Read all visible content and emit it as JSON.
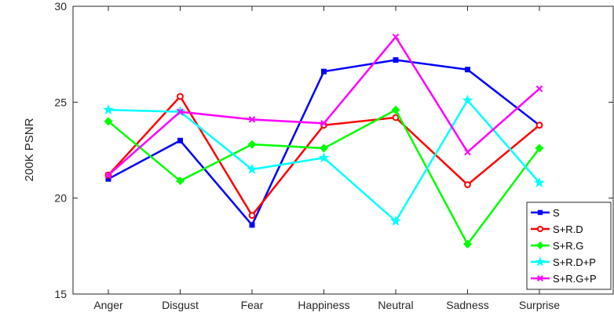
{
  "chart_data": {
    "type": "line",
    "title": "",
    "xlabel": "",
    "ylabel": "200K PSNR",
    "categories": [
      "Anger",
      "Disgust",
      "Fear",
      "Happiness",
      "Neutral",
      "Sadness",
      "Surprise"
    ],
    "ylim": [
      15,
      30
    ],
    "yticks": [
      15,
      20,
      25,
      30
    ],
    "grid": false,
    "legend_position": "bottom-right",
    "series": [
      {
        "name": "S",
        "color": "#0000ff",
        "marker": "square",
        "values": [
          21.0,
          23.0,
          18.6,
          26.6,
          27.2,
          26.7,
          23.8
        ]
      },
      {
        "name": "S+R.D",
        "color": "#ff0000",
        "marker": "circle",
        "values": [
          21.2,
          25.3,
          19.1,
          23.8,
          24.2,
          20.7,
          23.8
        ]
      },
      {
        "name": "S+R.G",
        "color": "#00ff00",
        "marker": "diamond",
        "values": [
          24.0,
          20.9,
          22.8,
          22.6,
          24.6,
          17.6,
          22.6
        ]
      },
      {
        "name": "S+R.D+P",
        "color": "#00ffff",
        "marker": "star",
        "values": [
          24.6,
          24.5,
          21.5,
          22.1,
          18.8,
          25.1,
          20.8
        ]
      },
      {
        "name": "S+R.G+P",
        "color": "#ff00ff",
        "marker": "x",
        "values": [
          21.2,
          24.5,
          24.1,
          23.9,
          28.4,
          22.4,
          25.7
        ]
      }
    ]
  }
}
